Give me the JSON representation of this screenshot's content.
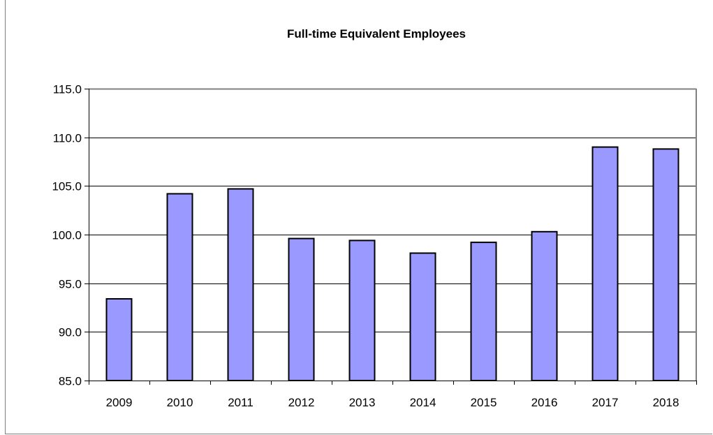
{
  "chart_data": {
    "type": "bar",
    "title": "Full-time Equivalent Employees",
    "xlabel": "",
    "ylabel": "",
    "categories": [
      "2009",
      "2010",
      "2011",
      "2012",
      "2013",
      "2014",
      "2015",
      "2016",
      "2017",
      "2018"
    ],
    "values": [
      93.4,
      104.2,
      104.7,
      99.6,
      99.4,
      98.1,
      99.2,
      100.3,
      109.0,
      108.8
    ],
    "ylim": [
      85.0,
      115.0
    ],
    "yticks": [
      "85.0",
      "90.0",
      "95.0",
      "100.0",
      "105.0",
      "110.0",
      "115.0"
    ],
    "grid": true,
    "legend": "none",
    "colors": {
      "bar_fill": "#9999FF",
      "bar_stroke": "#000000",
      "gridline": "#000000",
      "plot_border": "#808080"
    }
  }
}
